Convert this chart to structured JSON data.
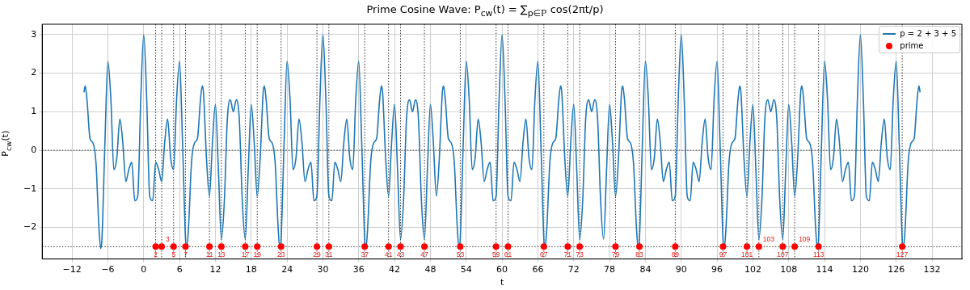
{
  "chart_data": {
    "type": "line",
    "title": "Prime Cosine Wave: P$_{cw}$(t) = ∑$_{p∈ℙ}$ cos(2πt/p)",
    "xlabel": "t",
    "ylabel": "P$_{cw}$(t)",
    "xlim": [
      -17,
      137
    ],
    "xticks": [
      -12,
      -6,
      0,
      6,
      12,
      18,
      24,
      30,
      36,
      42,
      48,
      54,
      60,
      66,
      72,
      78,
      84,
      90,
      96,
      102,
      108,
      114,
      120,
      126,
      132
    ],
    "ylim": [
      -2.82,
      3.27
    ],
    "yticks": [
      -2,
      -1,
      0,
      1,
      2,
      3
    ],
    "grid": true,
    "legend": "top right",
    "series": [
      {
        "name": "p = 2 + 3 + 5",
        "type": "line",
        "color": "#1f77b4",
        "marker": "none",
        "line_style": "solid",
        "x": [
          -10,
          -9.8,
          -9.5,
          -9,
          -8.5,
          -8,
          -7.5,
          -7.2,
          -7,
          -6.5,
          -6,
          -5.5,
          -5,
          -4.5,
          -4,
          -3.5,
          -3,
          -2.5,
          -2,
          -1.5,
          -1,
          -0.5,
          0,
          0.5,
          1,
          1.5,
          2,
          2.5,
          3,
          3.5,
          4,
          4.5,
          5,
          5.5,
          6,
          6.5,
          7,
          7.2,
          7.5,
          8,
          8.5,
          9,
          9.5,
          9.8,
          10,
          10.5,
          11,
          11.5,
          12,
          12.5,
          13,
          13.5,
          14,
          14.5,
          15,
          15.5,
          16,
          16.5,
          17,
          17.5,
          18,
          18.5,
          19,
          19.5,
          20,
          20.2,
          20.5,
          21,
          21.5,
          22,
          22.5,
          22.8,
          23,
          23.5,
          24,
          24.5,
          25,
          25.5,
          26,
          26.5,
          27,
          27.5,
          28,
          28.5,
          29,
          29.5,
          30,
          30.5,
          31,
          31.5,
          32,
          32.5,
          33,
          33.5,
          34,
          34.5,
          35,
          35.5,
          36,
          36.5,
          37,
          37.2,
          37.5,
          38,
          38.5,
          39,
          39.5,
          39.8,
          40,
          40.5,
          41,
          41.5,
          42,
          42.5,
          43,
          43.5,
          44,
          44.5,
          45,
          45.5,
          46,
          46.5,
          47,
          47.5,
          48,
          48.5,
          49,
          49.5,
          50,
          50.2,
          50.5,
          51,
          51.5,
          52,
          52.5,
          52.8,
          53,
          53.5,
          54,
          54.5,
          55,
          55.5,
          56,
          56.5,
          57,
          57.5,
          58,
          58.5,
          59,
          59.5,
          60,
          60.5,
          61,
          61.5,
          62,
          62.5,
          63,
          63.5,
          64,
          64.5,
          65,
          65.5,
          66,
          66.5,
          67,
          67.2,
          67.5,
          68,
          68.5,
          69,
          69.5,
          69.8,
          70,
          70.5,
          71,
          71.5,
          72,
          72.5,
          73,
          73.5,
          74,
          74.5,
          75,
          75.5,
          76,
          76.5,
          77,
          77.5,
          78,
          78.5,
          79,
          79.5,
          80,
          80.2,
          80.5,
          81,
          81.5,
          82,
          82.5,
          82.8,
          83,
          83.5,
          84,
          84.5,
          85,
          85.5,
          86,
          86.5,
          87,
          87.5,
          88,
          88.5,
          89,
          89.5,
          90,
          90.5,
          91,
          91.5,
          92,
          92.5,
          93,
          93.5,
          94,
          94.5,
          95,
          95.5,
          96,
          96.5,
          97,
          97.2,
          97.5,
          98,
          98.5,
          99,
          99.5,
          99.8,
          100,
          100.5,
          101,
          101.5,
          102,
          102.5,
          103,
          103.5,
          104,
          104.5,
          105,
          105.5,
          106,
          106.5,
          107,
          107.5,
          108,
          108.5,
          109,
          109.5,
          110,
          110.2,
          110.5,
          111,
          111.5,
          112,
          112.5,
          112.8,
          113,
          113.5,
          114,
          114.5,
          115,
          115.5,
          116,
          116.5,
          117,
          117.5,
          118,
          118.5,
          119,
          119.5,
          120,
          120.5,
          121,
          121.5,
          122,
          122.5,
          123,
          123.5,
          124,
          124.5,
          125,
          125.5,
          126,
          126.5,
          127,
          127.2,
          127.5,
          128,
          128.5,
          129,
          129.5,
          129.8,
          130
        ],
        "values": [
          1.5,
          1.67,
          1.31,
          0.31,
          0.19,
          -0.31,
          -2,
          -2.55,
          -2.31,
          0.19,
          2.31,
          1.31,
          -0.5,
          -0.19,
          0.81,
          0.19,
          -0.81,
          -0.5,
          -0.31,
          -1.31,
          -1.19,
          1.31,
          3,
          1.31,
          -1.19,
          -1.31,
          -0.31,
          -0.5,
          -0.81,
          0.19,
          0.81,
          -0.19,
          -0.5,
          1.31,
          2.31,
          0.19,
          -2.31,
          -2.55,
          -2,
          -0.31,
          0.19,
          0.31,
          1.31,
          1.67,
          1.5,
          -0.19,
          -1.19,
          0.19,
          1.19,
          -0.5,
          -2.31,
          -1.31,
          0.81,
          1.31,
          1,
          1.31,
          0.81,
          -1.31,
          -2.31,
          -0.5,
          1.19,
          0.19,
          -1.19,
          -0.19,
          1.5,
          1.67,
          1.31,
          0.31,
          0.19,
          -0.31,
          -2,
          -2.55,
          -2.31,
          0.19,
          2.31,
          1.31,
          -0.5,
          -0.19,
          0.81,
          0.19,
          -0.81,
          -0.5,
          -0.31,
          -1.31,
          -1.19,
          1.31,
          3,
          1.31,
          -1.19,
          -1.31,
          -0.31,
          -0.5,
          -0.81,
          0.19,
          0.81,
          -0.19,
          -0.5,
          1.31,
          2.31,
          0.19,
          -2.31,
          -2.55,
          -2,
          -0.31,
          0.19,
          0.31,
          1.31,
          1.67,
          1.5,
          -0.19,
          -1.19,
          0.19,
          1.19,
          -0.5,
          -2.31,
          -1.31,
          0.81,
          1.31,
          1,
          1.31,
          0.81,
          -1.31,
          -2.31,
          -0.5,
          1.19,
          0.19,
          -1.19,
          -0.19,
          1.5,
          1.67,
          1.31,
          0.31,
          0.19,
          -0.31,
          -2,
          -2.55,
          -2.31,
          0.19,
          2.31,
          1.31,
          -0.5,
          -0.19,
          0.81,
          0.19,
          -0.81,
          -0.5,
          -0.31,
          -1.31,
          -1.19,
          1.31,
          3,
          1.31,
          -1.19,
          -1.31,
          -0.31,
          -0.5,
          -0.81,
          0.19,
          0.81,
          -0.19,
          -0.5,
          1.31,
          2.31,
          0.19,
          -2.31,
          -2.55,
          -2,
          -0.31,
          0.19,
          0.31,
          1.31,
          1.67,
          1.5,
          -0.19,
          -1.19,
          0.19,
          1.19,
          -0.5,
          -2.31,
          -1.31,
          0.81,
          1.31,
          1,
          1.31,
          0.81,
          -1.31,
          -2.31,
          -0.5,
          1.19,
          0.19,
          -1.19,
          -0.19,
          1.5,
          1.67,
          1.31,
          0.31,
          0.19,
          -0.31,
          -2,
          -2.55,
          -2.31,
          0.19,
          2.31,
          1.31,
          -0.5,
          -0.19,
          0.81,
          0.19,
          -0.81,
          -0.5,
          -0.31,
          -1.31,
          -1.19,
          1.31,
          3,
          1.31,
          -1.19,
          -1.31,
          -0.31,
          -0.5,
          -0.81,
          0.19,
          0.81,
          -0.19,
          -0.5,
          1.31,
          2.31,
          0.19,
          -2.31,
          -2.55,
          -2,
          -0.31,
          0.19,
          0.31,
          1.31,
          1.67,
          1.5,
          -0.19,
          -1.19,
          0.19,
          1.19,
          -0.5,
          -2.31,
          -1.31,
          0.81,
          1.31,
          1,
          1.31,
          0.81,
          -1.31,
          -2.31,
          -0.5,
          1.19,
          0.19,
          -1.19,
          -0.19,
          1.5,
          1.67,
          1.31,
          0.31,
          0.19,
          -0.31,
          -2,
          -2.55,
          -2.31,
          0.19,
          2.31,
          1.31,
          -0.5,
          -0.19,
          0.81,
          0.19,
          -0.81,
          -0.5,
          -0.31,
          -1.31,
          -1.19,
          1.31,
          3,
          1.31,
          -1.19,
          -1.31,
          -0.31,
          -0.5,
          -0.81,
          0.19,
          0.81,
          -0.19,
          -0.5,
          1.31,
          2.31,
          0.19,
          -2.31,
          -2.55,
          -2,
          -0.31,
          0.19,
          0.31,
          1.31,
          1.67,
          1.5
        ]
      },
      {
        "name": "prime",
        "type": "scatter",
        "color": "#ff0000",
        "marker": "circle",
        "x": [
          2,
          3,
          5,
          7,
          11,
          13,
          17,
          19,
          23,
          29,
          31,
          37,
          41,
          43,
          47,
          53,
          59,
          61,
          67,
          71,
          73,
          79,
          83,
          89,
          97,
          101,
          103,
          107,
          109,
          113,
          127
        ],
        "values": [
          -2.5,
          -2.5,
          -2.5,
          -2.5,
          -2.5,
          -2.5,
          -2.5,
          -2.5,
          -2.5,
          -2.5,
          -2.5,
          -2.5,
          -2.5,
          -2.5,
          -2.5,
          -2.5,
          -2.5,
          -2.5,
          -2.5,
          -2.5,
          -2.5,
          -2.5,
          -2.5,
          -2.5,
          -2.5,
          -2.5,
          -2.5,
          -2.5,
          -2.5,
          -2.5,
          -2.5
        ]
      }
    ],
    "ref_lines": [
      {
        "axis": "y",
        "value": 0,
        "color": "#000000",
        "line_style": "dotted"
      },
      {
        "axis": "y",
        "value": -2.5,
        "color": "#000000",
        "line_style": "dotted"
      },
      {
        "axis": "x",
        "value": 2,
        "color": "#000000",
        "line_style": "dotted"
      },
      {
        "axis": "x",
        "value": 3,
        "color": "#000000",
        "line_style": "dotted"
      },
      {
        "axis": "x",
        "value": 5,
        "color": "#000000",
        "line_style": "dotted"
      },
      {
        "axis": "x",
        "value": 7,
        "color": "#000000",
        "line_style": "dotted"
      },
      {
        "axis": "x",
        "value": 11,
        "color": "#000000",
        "line_style": "dotted"
      },
      {
        "axis": "x",
        "value": 13,
        "color": "#000000",
        "line_style": "dotted"
      },
      {
        "axis": "x",
        "value": 17,
        "color": "#000000",
        "line_style": "dotted"
      },
      {
        "axis": "x",
        "value": 19,
        "color": "#000000",
        "line_style": "dotted"
      },
      {
        "axis": "x",
        "value": 23,
        "color": "#000000",
        "line_style": "dotted"
      },
      {
        "axis": "x",
        "value": 29,
        "color": "#000000",
        "line_style": "dotted"
      },
      {
        "axis": "x",
        "value": 31,
        "color": "#000000",
        "line_style": "dotted"
      },
      {
        "axis": "x",
        "value": 37,
        "color": "#000000",
        "line_style": "dotted"
      },
      {
        "axis": "x",
        "value": 41,
        "color": "#000000",
        "line_style": "dotted"
      },
      {
        "axis": "x",
        "value": 43,
        "color": "#000000",
        "line_style": "dotted"
      },
      {
        "axis": "x",
        "value": 47,
        "color": "#000000",
        "line_style": "dotted"
      },
      {
        "axis": "x",
        "value": 53,
        "color": "#000000",
        "line_style": "dotted"
      },
      {
        "axis": "x",
        "value": 59,
        "color": "#000000",
        "line_style": "dotted"
      },
      {
        "axis": "x",
        "value": 61,
        "color": "#000000",
        "line_style": "dotted"
      },
      {
        "axis": "x",
        "value": 67,
        "color": "#000000",
        "line_style": "dotted"
      },
      {
        "axis": "x",
        "value": 71,
        "color": "#000000",
        "line_style": "dotted"
      },
      {
        "axis": "x",
        "value": 73,
        "color": "#000000",
        "line_style": "dotted"
      },
      {
        "axis": "x",
        "value": 79,
        "color": "#000000",
        "line_style": "dotted"
      },
      {
        "axis": "x",
        "value": 83,
        "color": "#000000",
        "line_style": "dotted"
      },
      {
        "axis": "x",
        "value": 89,
        "color": "#000000",
        "line_style": "dotted"
      },
      {
        "axis": "x",
        "value": 97,
        "color": "#000000",
        "line_style": "dotted"
      },
      {
        "axis": "x",
        "value": 101,
        "color": "#000000",
        "line_style": "dotted"
      },
      {
        "axis": "x",
        "value": 103,
        "color": "#000000",
        "line_style": "dotted"
      },
      {
        "axis": "x",
        "value": 107,
        "color": "#000000",
        "line_style": "dotted"
      },
      {
        "axis": "x",
        "value": 109,
        "color": "#000000",
        "line_style": "dotted"
      },
      {
        "axis": "x",
        "value": 113,
        "color": "#000000",
        "line_style": "dotted"
      },
      {
        "axis": "x",
        "value": 127,
        "color": "#000000",
        "line_style": "dotted"
      }
    ],
    "annotations": [
      {
        "text": "2",
        "x": 2,
        "y": -2.5
      },
      {
        "text": "3",
        "x": 3,
        "y": -2.5
      },
      {
        "text": "5",
        "x": 5,
        "y": -2.5
      },
      {
        "text": "7",
        "x": 7,
        "y": -2.5
      },
      {
        "text": "11",
        "x": 11,
        "y": -2.5
      },
      {
        "text": "13",
        "x": 13,
        "y": -2.5
      },
      {
        "text": "17",
        "x": 17,
        "y": -2.5
      },
      {
        "text": "19",
        "x": 19,
        "y": -2.5
      },
      {
        "text": "23",
        "x": 23,
        "y": -2.5
      },
      {
        "text": "29",
        "x": 29,
        "y": -2.5
      },
      {
        "text": "31",
        "x": 31,
        "y": -2.5
      },
      {
        "text": "37",
        "x": 37,
        "y": -2.5
      },
      {
        "text": "41",
        "x": 41,
        "y": -2.5
      },
      {
        "text": "43",
        "x": 43,
        "y": -2.5
      },
      {
        "text": "47",
        "x": 47,
        "y": -2.5
      },
      {
        "text": "53",
        "x": 53,
        "y": -2.5
      },
      {
        "text": "59",
        "x": 59,
        "y": -2.5
      },
      {
        "text": "61",
        "x": 61,
        "y": -2.5
      },
      {
        "text": "67",
        "x": 67,
        "y": -2.5
      },
      {
        "text": "71",
        "x": 71,
        "y": -2.5
      },
      {
        "text": "73",
        "x": 73,
        "y": -2.5
      },
      {
        "text": "79",
        "x": 79,
        "y": -2.5
      },
      {
        "text": "83",
        "x": 83,
        "y": -2.5
      },
      {
        "text": "89",
        "x": 89,
        "y": -2.5
      },
      {
        "text": "97",
        "x": 97,
        "y": -2.5
      },
      {
        "text": "101",
        "x": 101,
        "y": -2.5
      },
      {
        "text": "103",
        "x": 103,
        "y": -2.5
      },
      {
        "text": "107",
        "x": 107,
        "y": -2.5
      },
      {
        "text": "109",
        "x": 109,
        "y": -2.5
      },
      {
        "text": "113",
        "x": 113,
        "y": -2.5
      },
      {
        "text": "127",
        "x": 127,
        "y": -2.5
      }
    ]
  }
}
